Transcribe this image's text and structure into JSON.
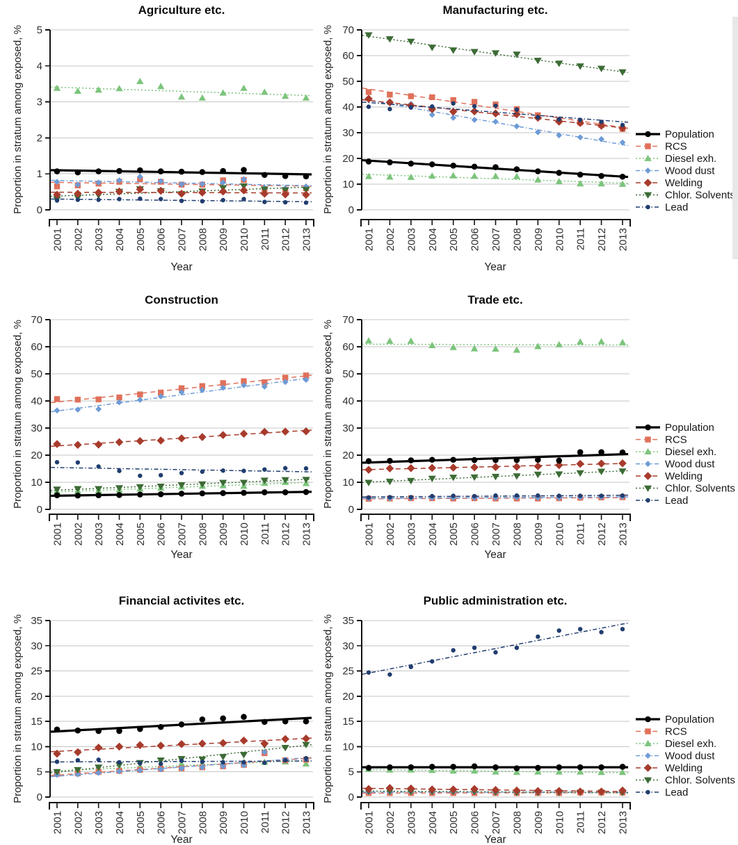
{
  "figure": {
    "years": [
      2001,
      2002,
      2003,
      2004,
      2005,
      2006,
      2007,
      2008,
      2009,
      2010,
      2011,
      2012,
      2013
    ],
    "xlabel": "Year",
    "ylabel": "Proportion in stratum among exposed, %",
    "colors": {
      "grid": "#c6c6c6",
      "axis": "#111111",
      "background": "#ffffff"
    },
    "series_style": [
      {
        "id": "population",
        "label": "Population",
        "color": "#000000",
        "marker": "circle",
        "dash": "solid"
      },
      {
        "id": "rcs",
        "label": "RCS",
        "color": "#e0705a",
        "marker": "square",
        "dash": "7,5"
      },
      {
        "id": "diesel",
        "label": "Diesel exh.",
        "color": "#7cc47c",
        "marker": "triangle-up",
        "dash": "2,3"
      },
      {
        "id": "wood",
        "label": "Wood dust",
        "color": "#6d9bd6",
        "marker": "diamond-small",
        "dash": "6,3,1.5,3"
      },
      {
        "id": "welding",
        "label": "Welding",
        "color": "#a73b2c",
        "marker": "diamond",
        "dash": "7,5"
      },
      {
        "id": "chlor",
        "label": "Chlor. Solvents",
        "color": "#3c6b35",
        "marker": "triangle-down",
        "dash": "2,3"
      },
      {
        "id": "lead",
        "label": "Lead",
        "color": "#203d6f",
        "marker": "circle-small",
        "dash": "6,3,1.5,3"
      }
    ]
  },
  "chart_data": [
    {
      "type": "scatter-trend",
      "title": "Agriculture etc.",
      "xlabel": "Year",
      "ylabel": "Proportion in stratum among exposed, %",
      "ylim": [
        0,
        5
      ],
      "yticks": [
        0,
        1,
        2,
        3,
        4,
        5
      ],
      "grid": true,
      "legend": false,
      "series": [
        {
          "name": "Population",
          "values": [
            1.07,
            1.04,
            1.07,
            1.08,
            1.1,
            1.07,
            1.06,
            1.05,
            1.08,
            1.11,
            0.97,
            0.94,
            0.93
          ]
        },
        {
          "name": "RCS",
          "values": [
            0.65,
            0.68,
            0.73,
            0.78,
            0.85,
            0.78,
            0.7,
            0.7,
            0.82,
            0.83,
            0.58,
            0.55,
            0.6
          ]
        },
        {
          "name": "Diesel exh.",
          "values": [
            3.38,
            3.3,
            3.33,
            3.37,
            3.57,
            3.43,
            3.14,
            3.11,
            3.25,
            3.38,
            3.27,
            3.16,
            3.11
          ]
        },
        {
          "name": "Wood dust",
          "values": [
            0.78,
            0.7,
            0.76,
            0.82,
            0.92,
            0.8,
            0.71,
            0.72,
            0.76,
            0.85,
            0.62,
            0.6,
            0.65
          ]
        },
        {
          "name": "Welding",
          "values": [
            0.42,
            0.45,
            0.48,
            0.51,
            0.57,
            0.53,
            0.45,
            0.48,
            0.51,
            0.54,
            0.45,
            0.43,
            0.42
          ]
        },
        {
          "name": "Chlor. Solvents",
          "values": [
            0.3,
            0.34,
            0.41,
            0.51,
            0.58,
            0.53,
            0.44,
            0.52,
            0.61,
            0.66,
            0.57,
            0.55,
            0.56
          ]
        },
        {
          "name": "Lead",
          "values": [
            0.26,
            0.28,
            0.28,
            0.3,
            0.31,
            0.3,
            0.25,
            0.24,
            0.27,
            0.3,
            0.22,
            0.21,
            0.2
          ]
        }
      ]
    },
    {
      "type": "scatter-trend",
      "title": "Manufacturing etc.",
      "xlabel": "Year",
      "ylabel": "Proportion in stratum among exposed, %",
      "ylim": [
        0,
        70
      ],
      "yticks": [
        0,
        10,
        20,
        30,
        40,
        50,
        60,
        70
      ],
      "grid": true,
      "legend": true,
      "series": [
        {
          "name": "Population",
          "values": [
            18.8,
            18.5,
            18.0,
            17.7,
            17.2,
            16.8,
            16.6,
            15.8,
            15.0,
            14.4,
            13.7,
            13.2,
            12.9
          ]
        },
        {
          "name": "RCS",
          "values": [
            45.8,
            44.8,
            44.2,
            43.8,
            42.7,
            42.0,
            41.0,
            39.2,
            36.8,
            35.0,
            34.0,
            33.0,
            31.5
          ]
        },
        {
          "name": "Diesel exh.",
          "values": [
            13.0,
            12.8,
            12.7,
            13.2,
            13.3,
            13.1,
            13.1,
            13.0,
            11.7,
            11.0,
            10.2,
            10.2,
            10.0
          ]
        },
        {
          "name": "Wood dust",
          "values": [
            43.0,
            41.6,
            41.2,
            37.0,
            35.8,
            35.0,
            34.3,
            32.5,
            30.2,
            29.0,
            28.2,
            27.5,
            26.2
          ]
        },
        {
          "name": "Welding",
          "values": [
            43.2,
            41.8,
            40.5,
            39.2,
            38.2,
            38.3,
            37.5,
            37.2,
            35.8,
            34.3,
            33.8,
            32.7,
            31.8
          ]
        },
        {
          "name": "Chlor. Solvents",
          "values": [
            68.0,
            66.5,
            65.5,
            63.2,
            62.1,
            61.5,
            61.0,
            60.5,
            58.1,
            57.0,
            55.9,
            55.0,
            53.6
          ]
        },
        {
          "name": "Lead",
          "values": [
            40.1,
            39.2,
            39.8,
            40.2,
            41.4,
            40.3,
            40.5,
            39.0,
            36.0,
            35.2,
            35.0,
            34.2,
            33.0
          ]
        }
      ]
    },
    {
      "type": "scatter-trend",
      "title": "Construction",
      "xlabel": "Year",
      "ylabel": "Proportion in stratum among exposed, %",
      "ylim": [
        0,
        70
      ],
      "yticks": [
        0,
        10,
        20,
        30,
        40,
        50,
        60,
        70
      ],
      "grid": true,
      "legend": false,
      "series": [
        {
          "name": "Population",
          "values": [
            5.2,
            5.1,
            5.2,
            5.3,
            5.5,
            5.6,
            5.8,
            5.9,
            6.0,
            6.1,
            6.3,
            6.3,
            6.4
          ]
        },
        {
          "name": "RCS",
          "values": [
            40.7,
            40.5,
            40.6,
            41.3,
            42.4,
            43.1,
            44.7,
            45.5,
            46.6,
            47.3,
            46.9,
            48.6,
            49.4
          ]
        },
        {
          "name": "Diesel exh.",
          "values": [
            6.6,
            6.8,
            6.9,
            7.2,
            7.6,
            7.9,
            8.3,
            8.6,
            8.8,
            8.6,
            9.7,
            10.0,
            9.6
          ]
        },
        {
          "name": "Wood dust",
          "values": [
            36.5,
            36.8,
            37.0,
            39.5,
            40.4,
            41.7,
            43.2,
            44.0,
            44.9,
            45.8,
            45.3,
            47.0,
            47.8
          ]
        },
        {
          "name": "Welding",
          "values": [
            24.1,
            23.8,
            23.9,
            24.8,
            25.2,
            25.4,
            26.2,
            26.7,
            27.4,
            27.9,
            28.6,
            28.7,
            28.8
          ]
        },
        {
          "name": "Chlor. Solvents",
          "values": [
            7.4,
            7.6,
            7.6,
            7.9,
            8.3,
            8.5,
            9.0,
            9.3,
            9.9,
            9.9,
            10.7,
            10.9,
            11.0
          ]
        },
        {
          "name": "Lead",
          "values": [
            17.4,
            17.3,
            15.8,
            14.2,
            12.4,
            12.6,
            13.4,
            13.9,
            14.3,
            14.2,
            14.7,
            15.2,
            15.1
          ]
        }
      ]
    },
    {
      "type": "scatter-trend",
      "title": "Trade etc.",
      "xlabel": "Year",
      "ylabel": "Proportion in stratum among exposed, %",
      "ylim": [
        0,
        70
      ],
      "yticks": [
        0,
        10,
        20,
        30,
        40,
        50,
        60,
        70
      ],
      "grid": true,
      "legend": true,
      "series": [
        {
          "name": "Population",
          "values": [
            17.8,
            17.9,
            18.1,
            18.3,
            18.3,
            18.2,
            18.2,
            18.2,
            18.3,
            18.0,
            21.1,
            21.1,
            21.0
          ]
        },
        {
          "name": "RCS",
          "values": [
            3.9,
            4.0,
            4.1,
            4.1,
            4.0,
            4.1,
            4.0,
            4.0,
            4.0,
            4.1,
            4.3,
            4.4,
            4.5
          ]
        },
        {
          "name": "Diesel exh.",
          "values": [
            62.2,
            62.1,
            62.1,
            60.5,
            59.8,
            59.3,
            59.2,
            58.8,
            60.1,
            60.8,
            61.8,
            61.9,
            61.6
          ]
        },
        {
          "name": "Wood dust",
          "values": [
            4.1,
            4.1,
            4.2,
            4.3,
            4.3,
            4.3,
            4.3,
            4.4,
            4.3,
            4.3,
            4.5,
            4.6,
            4.7
          ]
        },
        {
          "name": "Welding",
          "values": [
            14.6,
            15.1,
            15.2,
            15.3,
            15.4,
            15.5,
            15.6,
            15.7,
            15.9,
            16.3,
            16.8,
            16.9,
            17.0
          ]
        },
        {
          "name": "Chlor. Solvents",
          "values": [
            9.9,
            10.3,
            10.6,
            11.4,
            11.8,
            11.9,
            12.1,
            12.3,
            12.9,
            13.0,
            13.4,
            14.0,
            14.1
          ]
        },
        {
          "name": "Lead",
          "values": [
            4.4,
            4.5,
            4.5,
            4.9,
            5.0,
            4.9,
            5.1,
            5.1,
            5.1,
            5.0,
            5.0,
            5.0,
            5.1
          ]
        }
      ]
    },
    {
      "type": "scatter-trend",
      "title": "Financial activites etc.",
      "xlabel": "Year",
      "ylabel": "Proportion in stratum among exposed, %",
      "ylim": [
        0,
        35
      ],
      "yticks": [
        0,
        5,
        10,
        15,
        20,
        25,
        30,
        35
      ],
      "grid": true,
      "legend": false,
      "series": [
        {
          "name": "Population",
          "values": [
            13.4,
            13.2,
            13.1,
            13.1,
            13.5,
            13.9,
            14.4,
            15.4,
            15.6,
            15.9,
            14.9,
            15.0,
            15.0
          ]
        },
        {
          "name": "RCS",
          "values": [
            4.6,
            4.7,
            5.0,
            5.2,
            5.4,
            5.6,
            5.7,
            5.9,
            6.1,
            6.4,
            8.7,
            7.3,
            7.4
          ]
        },
        {
          "name": "Diesel exh.",
          "values": [
            4.9,
            5.1,
            5.4,
            5.8,
            6.1,
            6.3,
            6.6,
            6.6,
            6.8,
            6.9,
            6.9,
            7.0,
            6.6
          ]
        },
        {
          "name": "Wood dust",
          "values": [
            4.4,
            4.5,
            4.8,
            5.1,
            5.3,
            5.5,
            5.7,
            5.9,
            6.1,
            6.3,
            8.9,
            7.4,
            7.5
          ]
        },
        {
          "name": "Welding",
          "values": [
            8.6,
            8.9,
            9.8,
            10.0,
            10.3,
            10.2,
            10.5,
            10.6,
            10.7,
            11.2,
            10.6,
            11.5,
            11.6
          ]
        },
        {
          "name": "Chlor. Solvents",
          "values": [
            5.0,
            5.4,
            5.9,
            6.4,
            6.8,
            7.3,
            7.6,
            7.5,
            8.0,
            8.4,
            10.3,
            9.8,
            10.4
          ]
        },
        {
          "name": "Lead",
          "values": [
            7.0,
            7.3,
            7.4,
            6.9,
            6.7,
            6.6,
            7.2,
            7.0,
            6.9,
            6.9,
            6.8,
            7.3,
            7.7
          ]
        }
      ]
    },
    {
      "type": "scatter-trend",
      "title": "Public administration etc.",
      "xlabel": "Year",
      "ylabel": "Proportion in stratum among exposed, %",
      "ylim": [
        0,
        35
      ],
      "yticks": [
        0,
        5,
        10,
        15,
        20,
        25,
        30,
        35
      ],
      "grid": true,
      "legend": true,
      "series": [
        {
          "name": "Population",
          "values": [
            5.8,
            5.9,
            5.9,
            6.0,
            6.0,
            6.1,
            5.9,
            5.7,
            5.8,
            5.9,
            5.9,
            5.9,
            6.0
          ]
        },
        {
          "name": "RCS",
          "values": [
            0.8,
            0.8,
            0.8,
            0.8,
            0.8,
            0.8,
            0.8,
            0.8,
            0.8,
            0.8,
            0.9,
            0.9,
            0.9
          ]
        },
        {
          "name": "Diesel exh.",
          "values": [
            5.5,
            5.4,
            5.4,
            5.3,
            5.2,
            5.2,
            5.0,
            4.9,
            5.0,
            5.0,
            5.0,
            4.9,
            4.9
          ]
        },
        {
          "name": "Wood dust",
          "values": [
            1.0,
            1.0,
            1.0,
            1.0,
            1.0,
            1.0,
            0.9,
            0.9,
            0.9,
            0.9,
            1.0,
            1.0,
            1.0
          ]
        },
        {
          "name": "Welding",
          "values": [
            1.6,
            1.8,
            1.7,
            1.5,
            1.5,
            1.6,
            1.4,
            1.3,
            1.2,
            1.2,
            1.1,
            1.1,
            1.3
          ]
        },
        {
          "name": "Chlor. Solvents",
          "values": [
            1.2,
            1.2,
            1.1,
            1.1,
            1.1,
            1.1,
            1.0,
            0.9,
            0.9,
            0.9,
            0.9,
            0.9,
            0.9
          ]
        },
        {
          "name": "Lead",
          "values": [
            24.7,
            24.3,
            25.8,
            26.9,
            29.1,
            29.6,
            28.7,
            29.6,
            31.8,
            33.0,
            33.3,
            32.7,
            33.3
          ]
        }
      ]
    }
  ]
}
